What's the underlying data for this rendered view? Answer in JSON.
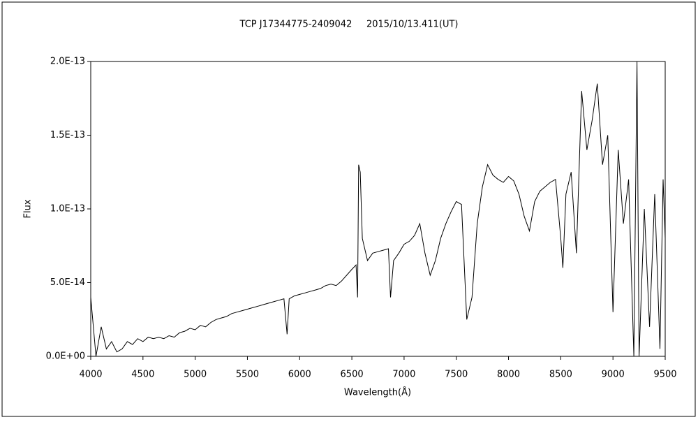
{
  "chart_data": {
    "type": "line",
    "title": "TCP J17344775-2409042     2015/10/13.411(UT)",
    "x_label": "Wavelength(Å)",
    "y_label": "Flux",
    "xlim": [
      4000,
      9500
    ],
    "xticks": [
      4000,
      4500,
      5000,
      5500,
      6000,
      6500,
      7000,
      7500,
      8000,
      8500,
      9000,
      9500
    ],
    "ylim": [
      0,
      2e-13
    ],
    "yticks": [
      {
        "value": 0,
        "label": "0.0E+00"
      },
      {
        "value": 5e-14,
        "label": "5.0E-14"
      },
      {
        "value": 1e-13,
        "label": "1.0E-13"
      },
      {
        "value": 1.5e-13,
        "label": "1.5E-13"
      },
      {
        "value": 2e-13,
        "label": "2.0E-13"
      }
    ],
    "grid": false,
    "series": [
      {
        "name": "Flux",
        "color": "#000000",
        "x": [
          4000,
          4050,
          4100,
          4150,
          4200,
          4250,
          4300,
          4350,
          4400,
          4450,
          4500,
          4550,
          4600,
          4650,
          4700,
          4750,
          4800,
          4850,
          4900,
          4950,
          5000,
          5050,
          5100,
          5150,
          5200,
          5250,
          5300,
          5350,
          5400,
          5450,
          5500,
          5550,
          5600,
          5650,
          5700,
          5750,
          5800,
          5850,
          5880,
          5900,
          5950,
          6000,
          6050,
          6100,
          6150,
          6200,
          6250,
          6300,
          6350,
          6400,
          6450,
          6500,
          6540,
          6555,
          6565,
          6580,
          6600,
          6650,
          6700,
          6750,
          6800,
          6850,
          6870,
          6900,
          6950,
          7000,
          7050,
          7100,
          7150,
          7200,
          7250,
          7300,
          7350,
          7400,
          7450,
          7500,
          7550,
          7600,
          7650,
          7700,
          7750,
          7800,
          7850,
          7900,
          7950,
          8000,
          8050,
          8100,
          8150,
          8200,
          8250,
          8300,
          8350,
          8400,
          8450,
          8500,
          8520,
          8550,
          8600,
          8650,
          8700,
          8750,
          8800,
          8850,
          8900,
          8950,
          9000,
          9050,
          9100,
          9150,
          9200,
          9230,
          9250,
          9300,
          9350,
          9400,
          9450,
          9480,
          9500
        ],
        "values": [
          4e-14,
          0,
          2e-14,
          5e-15,
          1e-14,
          3e-15,
          5e-15,
          1e-14,
          8e-15,
          1.2e-14,
          1e-14,
          1.3e-14,
          1.2e-14,
          1.3e-14,
          1.2e-14,
          1.4e-14,
          1.3e-14,
          1.6e-14,
          1.7e-14,
          1.9e-14,
          1.8e-14,
          2.1e-14,
          2e-14,
          2.3e-14,
          2.5e-14,
          2.6e-14,
          2.7e-14,
          2.9e-14,
          3e-14,
          3.1e-14,
          3.2e-14,
          3.3e-14,
          3.4e-14,
          3.5e-14,
          3.6e-14,
          3.7e-14,
          3.8e-14,
          3.9e-14,
          1.5e-14,
          3.9e-14,
          4.1e-14,
          4.2e-14,
          4.3e-14,
          4.4e-14,
          4.5e-14,
          4.6e-14,
          4.8e-14,
          4.9e-14,
          4.8e-14,
          5.1e-14,
          5.5e-14,
          5.9e-14,
          6.2e-14,
          4e-14,
          1.3e-13,
          1.25e-13,
          8e-14,
          6.5e-14,
          7e-14,
          7.1e-14,
          7.2e-14,
          7.3e-14,
          4e-14,
          6.5e-14,
          7e-14,
          7.6e-14,
          7.8e-14,
          8.2e-14,
          9e-14,
          7e-14,
          5.5e-14,
          6.5e-14,
          8e-14,
          9e-14,
          9.8e-14,
          1.05e-13,
          1.03e-13,
          2.5e-14,
          4e-14,
          9e-14,
          1.15e-13,
          1.3e-13,
          1.23e-13,
          1.2e-13,
          1.18e-13,
          1.22e-13,
          1.19e-13,
          1.1e-13,
          9.5e-14,
          8.5e-14,
          1.05e-13,
          1.12e-13,
          1.15e-13,
          1.18e-13,
          1.2e-13,
          8e-14,
          6e-14,
          1.1e-13,
          1.25e-13,
          7e-14,
          1.8e-13,
          1.4e-13,
          1.6e-13,
          1.85e-13,
          1.3e-13,
          1.5e-13,
          3e-14,
          1.4e-13,
          9e-14,
          1.2e-13,
          0,
          2e-13,
          0,
          1e-13,
          2e-14,
          1.1e-13,
          5e-15,
          1.2e-13,
          8e-14
        ]
      }
    ]
  }
}
